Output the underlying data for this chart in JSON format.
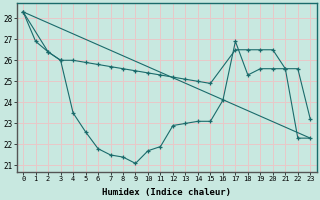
{
  "title": "",
  "xlabel": "Humidex (Indice chaleur)",
  "bg_color": "#c8e8e0",
  "plot_bg_color": "#c8e8e0",
  "grid_color": "#e8c8c8",
  "line_color": "#1a6b6b",
  "border_color": "#1a6b6b",
  "xlim": [
    -0.5,
    23.5
  ],
  "ylim": [
    20.7,
    28.7
  ],
  "yticks": [
    21,
    22,
    23,
    24,
    25,
    26,
    27,
    28
  ],
  "xticks": [
    0,
    1,
    2,
    3,
    4,
    5,
    6,
    7,
    8,
    9,
    10,
    11,
    12,
    13,
    14,
    15,
    16,
    17,
    18,
    19,
    20,
    21,
    22,
    23
  ],
  "line1_x": [
    0,
    1,
    2,
    3,
    4,
    5,
    6,
    7,
    8,
    9,
    10,
    11,
    12,
    13,
    14,
    15,
    16,
    17,
    18,
    19,
    20,
    21,
    22,
    23
  ],
  "line1_y": [
    28.3,
    26.9,
    26.4,
    26.0,
    23.5,
    22.6,
    21.8,
    21.5,
    21.4,
    21.1,
    21.7,
    21.9,
    22.9,
    23.0,
    23.1,
    23.1,
    24.1,
    26.9,
    25.3,
    25.6,
    25.6,
    25.6,
    22.3,
    22.3
  ],
  "line2_x": [
    0,
    2,
    3,
    4,
    5,
    6,
    7,
    8,
    9,
    10,
    11,
    12,
    13,
    14,
    15,
    17,
    18,
    19,
    20,
    21,
    22,
    23
  ],
  "line2_y": [
    28.3,
    26.4,
    26.0,
    26.0,
    25.9,
    25.8,
    25.7,
    25.6,
    25.5,
    25.4,
    25.3,
    25.2,
    25.1,
    25.0,
    24.9,
    26.5,
    26.5,
    26.5,
    26.5,
    25.6,
    25.6,
    23.2
  ],
  "line3_x": [
    0,
    23
  ],
  "line3_y": [
    28.3,
    22.3
  ]
}
